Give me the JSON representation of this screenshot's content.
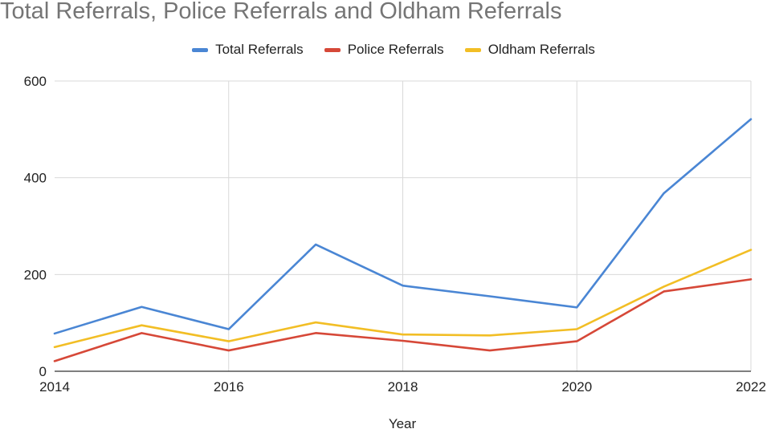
{
  "chart_data": {
    "type": "line",
    "title": "Total Referrals, Police Referrals and Oldham Referrals",
    "xlabel": "Year",
    "ylabel": "",
    "x": [
      2014,
      2015,
      2016,
      2017,
      2018,
      2019,
      2020,
      2021,
      2022
    ],
    "xlim": [
      2014,
      2022
    ],
    "ylim": [
      0,
      600
    ],
    "x_ticks": [
      "2014",
      "2016",
      "2018",
      "2020",
      "2022"
    ],
    "y_ticks": [
      "0",
      "200",
      "400",
      "600"
    ],
    "grid": true,
    "legend_position": "top",
    "series": [
      {
        "name": "Total Referrals",
        "color": "#4a86d4",
        "values": [
          78,
          133,
          87,
          262,
          177,
          155,
          132,
          368,
          521
        ]
      },
      {
        "name": "Police Referrals",
        "color": "#d64838",
        "values": [
          21,
          79,
          43,
          79,
          63,
          43,
          62,
          165,
          190
        ]
      },
      {
        "name": "Oldham Referrals",
        "color": "#f2be25",
        "values": [
          50,
          95,
          62,
          101,
          76,
          74,
          87,
          175,
          251
        ]
      }
    ]
  }
}
